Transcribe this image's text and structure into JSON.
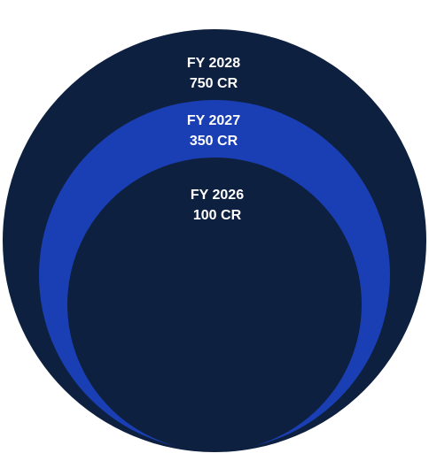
{
  "rings": [
    {
      "year": "FY 2028",
      "amount": "750 CR",
      "color": "#0E2040"
    },
    {
      "year": "FY 2027",
      "amount": "350 CR",
      "color": "#1A3FB4"
    },
    {
      "year": "FY 2026",
      "amount": "100 CR",
      "color": "#0E2040"
    }
  ]
}
